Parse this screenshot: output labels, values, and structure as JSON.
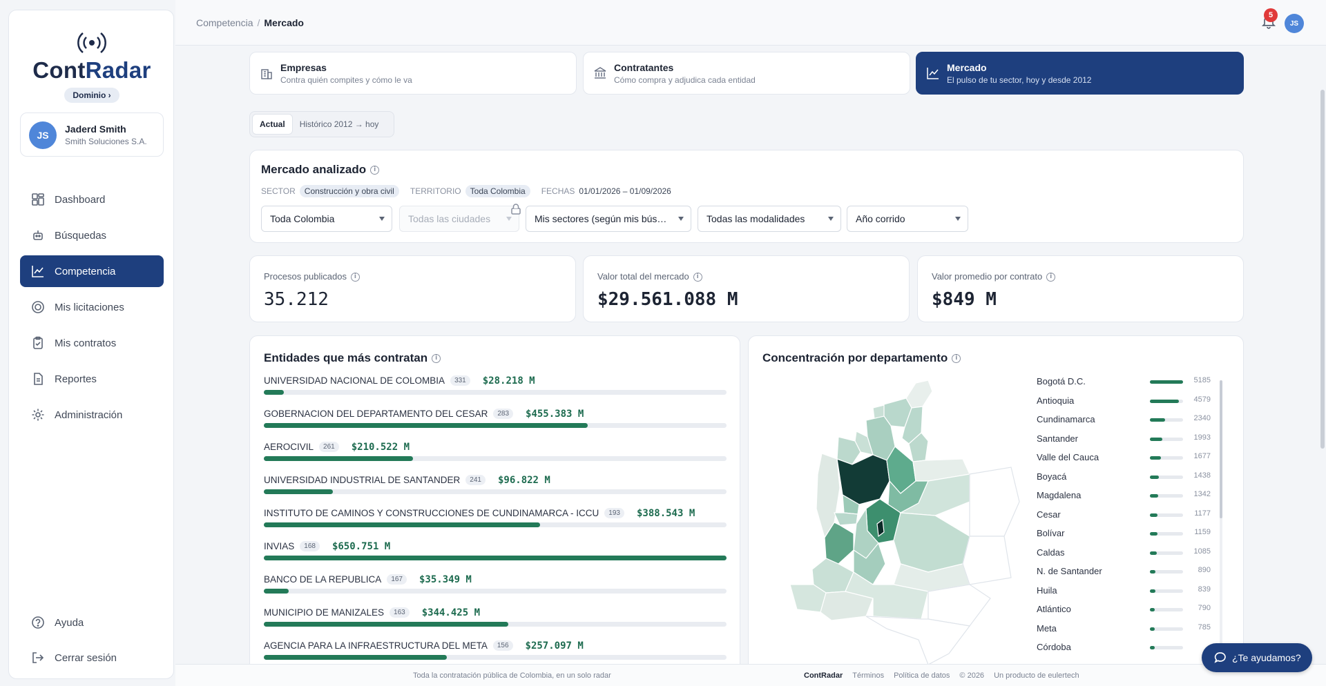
{
  "app": {
    "logo_text_a": "Cont",
    "logo_text_b": "Radar",
    "domain_chip": "Dominio ›"
  },
  "user": {
    "initials": "JS",
    "name": "Jaderd Smith",
    "company": "Smith Soluciones S.A."
  },
  "nav": {
    "items": [
      {
        "label": "Dashboard",
        "icon": "dashboard-icon"
      },
      {
        "label": "Búsquedas",
        "icon": "robot-icon"
      },
      {
        "label": "Competencia",
        "icon": "chart-line-icon"
      },
      {
        "label": "Mis licitaciones",
        "icon": "target-icon"
      },
      {
        "label": "Mis contratos",
        "icon": "clipboard-icon"
      },
      {
        "label": "Reportes",
        "icon": "document-icon"
      },
      {
        "label": "Administración",
        "icon": "gear-icon"
      }
    ],
    "help": "Ayuda",
    "logout": "Cerrar sesión"
  },
  "topbar": {
    "breadcrumb_parent": "Competencia",
    "breadcrumb_sep": "/",
    "breadcrumb_current": "Mercado",
    "notifications": "5",
    "avatar_initials": "JS"
  },
  "tabs": [
    {
      "title": "Empresas",
      "subtitle": "Contra quién compites y cómo le va"
    },
    {
      "title": "Contratantes",
      "subtitle": "Cómo compra y adjudica cada entidad"
    },
    {
      "title": "Mercado",
      "subtitle": "El pulso de tu sector, hoy y desde 2012"
    }
  ],
  "subtoggle": {
    "current": "Actual",
    "historic": "Histórico 2012 → hoy"
  },
  "market": {
    "title": "Mercado analizado",
    "sector_label": "SECTOR",
    "sector_value": "Construcción y obra civil",
    "territory_label": "TERRITORIO",
    "territory_value": "Toda Colombia",
    "dates_label": "FECHAS",
    "dates_value": "01/01/2026 – 01/09/2026",
    "filters": {
      "region": "Toda Colombia",
      "cities": "Todas las ciudades",
      "sectors": "Mis sectores (según mis bús…",
      "modalities": "Todas las modalidades",
      "period": "Año corrido"
    }
  },
  "kpis": [
    {
      "label": "Procesos publicados",
      "value": "35.212"
    },
    {
      "label": "Valor total del mercado",
      "value": "$29.561.088 M"
    },
    {
      "label": "Valor promedio por contrato",
      "value": "$849 M"
    }
  ],
  "entities": {
    "title": "Entidades que más contratan",
    "rows": [
      {
        "name": "UNIVERSIDAD NACIONAL DE COLOMBIA",
        "count": "331",
        "amount": "$28.218 M",
        "share": 0.043
      },
      {
        "name": "GOBERNACION DEL DEPARTAMENTO DEL CESAR",
        "count": "283",
        "amount": "$455.383 M",
        "share": 0.7
      },
      {
        "name": "AEROCIVIL",
        "count": "261",
        "amount": "$210.522 M",
        "share": 0.323
      },
      {
        "name": "UNIVERSIDAD INDUSTRIAL DE SANTANDER",
        "count": "241",
        "amount": "$96.822 M",
        "share": 0.149
      },
      {
        "name": "INSTITUTO DE CAMINOS Y CONSTRUCCIONES DE CUNDINAMARCA - ICCU",
        "count": "193",
        "amount": "$388.543 M",
        "share": 0.597
      },
      {
        "name": "INVIAS",
        "count": "168",
        "amount": "$650.751 M",
        "share": 1.0
      },
      {
        "name": "BANCO DE LA REPUBLICA",
        "count": "167",
        "amount": "$35.349 M",
        "share": 0.054
      },
      {
        "name": "MUNICIPIO DE MANIZALES",
        "count": "163",
        "amount": "$344.425 M",
        "share": 0.529
      },
      {
        "name": "AGENCIA PARA LA INFRAESTRUCTURA DEL META",
        "count": "156",
        "amount": "$257.097 M",
        "share": 0.395
      }
    ]
  },
  "departments": {
    "title": "Concentración por departamento",
    "rows": [
      {
        "name": "Bogotá D.C.",
        "value": "5185",
        "share": 1.0
      },
      {
        "name": "Antioquia",
        "value": "4579",
        "share": 0.883
      },
      {
        "name": "Cundinamarca",
        "value": "2340",
        "share": 0.451
      },
      {
        "name": "Santander",
        "value": "1993",
        "share": 0.384
      },
      {
        "name": "Valle del Cauca",
        "value": "1677",
        "share": 0.323
      },
      {
        "name": "Boyacá",
        "value": "1438",
        "share": 0.277
      },
      {
        "name": "Magdalena",
        "value": "1342",
        "share": 0.259
      },
      {
        "name": "Cesar",
        "value": "1177",
        "share": 0.227
      },
      {
        "name": "Bolívar",
        "value": "1159",
        "share": 0.224
      },
      {
        "name": "Caldas",
        "value": "1085",
        "share": 0.209
      },
      {
        "name": "N. de Santander",
        "value": "890",
        "share": 0.172
      },
      {
        "name": "Huila",
        "value": "839",
        "share": 0.162
      },
      {
        "name": "Atlántico",
        "value": "790",
        "share": 0.152
      },
      {
        "name": "Meta",
        "value": "785",
        "share": 0.151
      },
      {
        "name": "Córdoba",
        "value": "",
        "share": 0.14
      }
    ]
  },
  "footer": {
    "tagline": "Toda la contratación pública de Colombia, en un solo radar",
    "brand": "ContRadar",
    "terms": "Términos",
    "privacy": "Política de datos",
    "copyright": "© 2026",
    "product": "Un producto de eulertech"
  },
  "help_button": "¿Te ayudamos?",
  "colors": {
    "primary": "#1e3f7e",
    "accent_green": "#237a58",
    "badge_red": "#e03a3a"
  }
}
